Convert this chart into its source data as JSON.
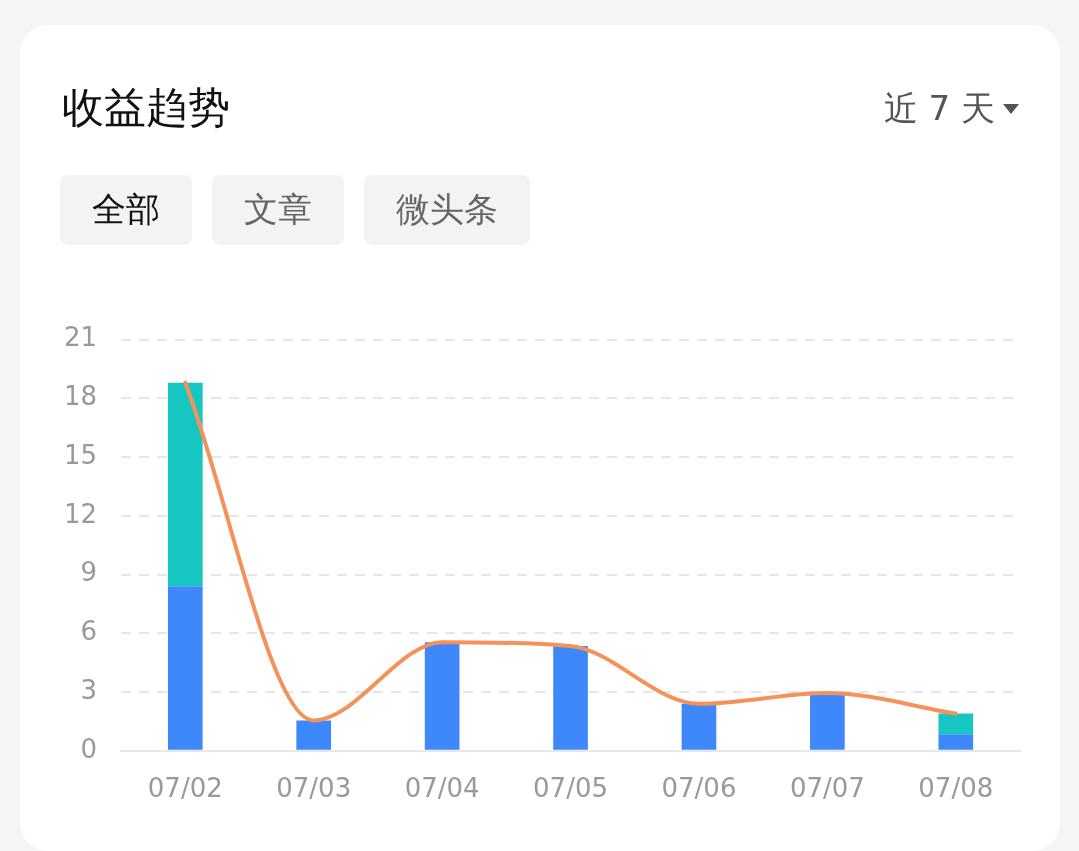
{
  "chart_data": {
    "type": "bar",
    "title": "收益趋势",
    "annotations": [
      "近 7 天",
      "全部",
      "文章",
      "微头条"
    ],
    "categories": [
      "07/02",
      "07/03",
      "07/04",
      "07/05",
      "07/06",
      "07/07",
      "07/08"
    ],
    "series": [
      {
        "color": "#3f88fb",
        "values": [
          8.4,
          1.55,
          5.55,
          5.35,
          2.4,
          2.95,
          0.85
        ]
      },
      {
        "color": "#16c6c0",
        "values": [
          10.4,
          null,
          null,
          null,
          null,
          null,
          1.05
        ]
      },
      {
        "type": "line",
        "color": "#f5925a",
        "values": [
          18.8,
          1.55,
          5.55,
          5.35,
          2.4,
          2.95,
          1.9
        ]
      }
    ],
    "stacked": true,
    "ylim": [
      0,
      21
    ],
    "yticks": [
      0,
      3,
      6,
      9,
      12,
      15,
      18,
      21
    ],
    "grid": "y",
    "legend": false,
    "marker": "none"
  }
}
